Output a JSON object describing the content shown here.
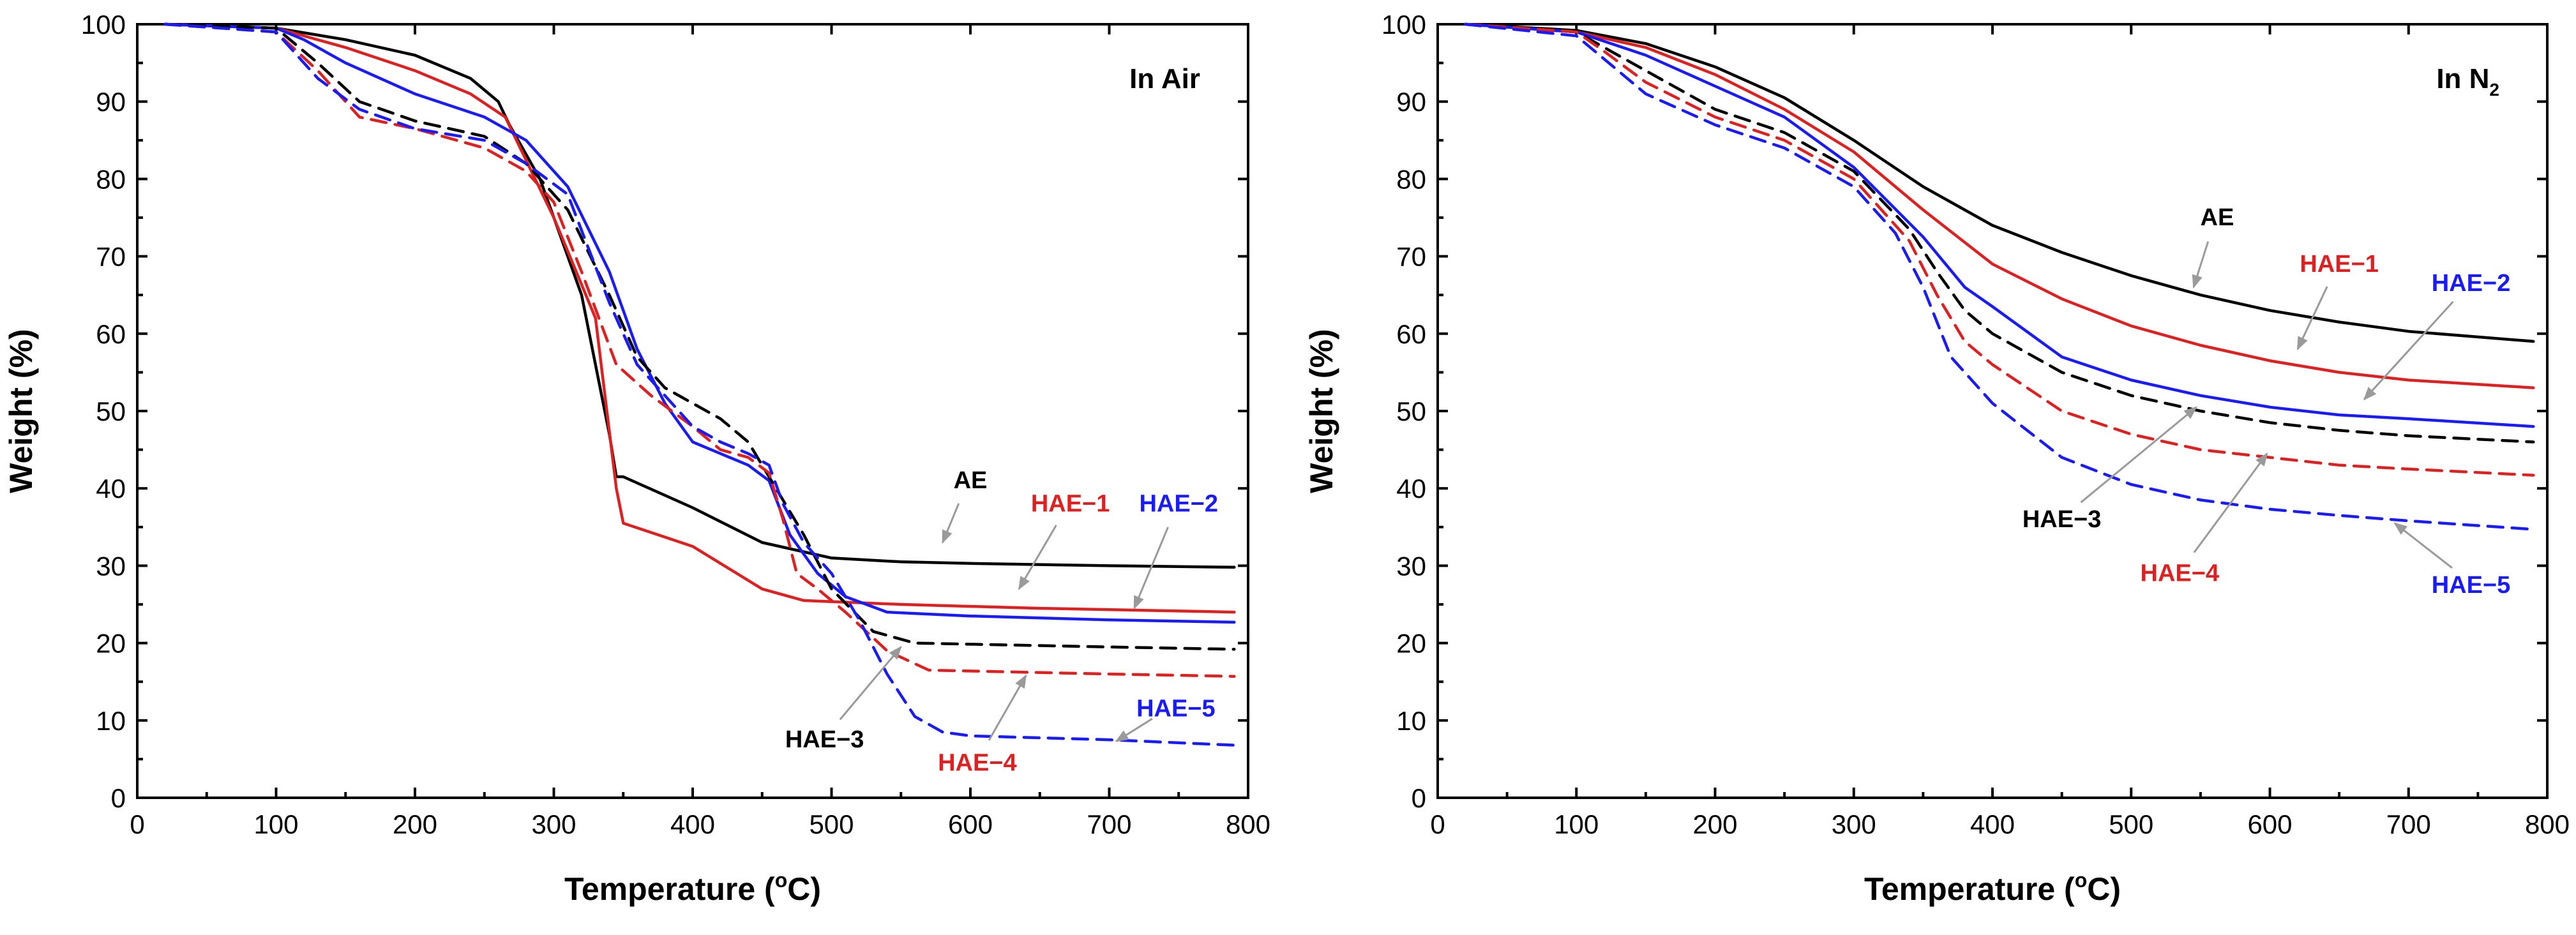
{
  "chart_data": [
    {
      "type": "line",
      "title": "In Air",
      "title_sub": "",
      "xlabel": "Temperature (",
      "xlabel_sup": "o",
      "xlabel_tail": "C)",
      "ylabel": "Weight (%)",
      "xlim": [
        0,
        800
      ],
      "ylim": [
        0,
        100
      ],
      "xticks": [
        0,
        100,
        200,
        300,
        400,
        500,
        600,
        700,
        800
      ],
      "yticks": [
        0,
        10,
        20,
        30,
        40,
        50,
        60,
        70,
        80,
        90,
        100
      ],
      "series": [
        {
          "name": "AE",
          "color": "#000000",
          "dash": false,
          "label_pos": [
            600,
            40
          ],
          "arrow_to": [
            580,
            33
          ],
          "x": [
            20,
            100,
            150,
            200,
            240,
            260,
            268,
            290,
            320,
            340,
            345,
            350,
            400,
            450,
            500,
            550,
            600,
            700,
            790
          ],
          "y": [
            100,
            99.5,
            98,
            96,
            93,
            90,
            87,
            80,
            65,
            47,
            41.5,
            41.5,
            37.5,
            33,
            31,
            30.5,
            30.3,
            30,
            29.8
          ]
        },
        {
          "name": "HAE−1",
          "color": "#e02020",
          "dash": false,
          "label_pos": [
            672,
            37
          ],
          "arrow_to": [
            635,
            27
          ],
          "x": [
            20,
            100,
            150,
            200,
            240,
            265,
            300,
            330,
            345,
            350,
            400,
            450,
            480,
            550,
            650,
            790
          ],
          "y": [
            100,
            99.5,
            97,
            94,
            91,
            88,
            75,
            62,
            40,
            35.5,
            32.5,
            27,
            25.5,
            25,
            24.5,
            24
          ]
        },
        {
          "name": "HAE−2",
          "color": "#1a1aff",
          "dash": false,
          "label_pos": [
            750,
            37
          ],
          "arrow_to": [
            718,
            24.5
          ],
          "x": [
            20,
            100,
            120,
            150,
            200,
            250,
            280,
            310,
            340,
            360,
            380,
            400,
            420,
            440,
            455,
            470,
            490,
            510,
            540,
            600,
            700,
            790
          ],
          "y": [
            100,
            99.5,
            98,
            95,
            91,
            88,
            85,
            79,
            68,
            58,
            51,
            46,
            44.5,
            43,
            41,
            34,
            29,
            26,
            24,
            23.5,
            23,
            22.7
          ]
        },
        {
          "name": "HAE−3",
          "color": "#000000",
          "dash": true,
          "label_pos": [
            495,
            6.5
          ],
          "arrow_to": [
            550,
            19.5
          ],
          "x": [
            20,
            100,
            130,
            160,
            200,
            250,
            280,
            310,
            340,
            360,
            380,
            400,
            420,
            440,
            460,
            480,
            500,
            530,
            560,
            700,
            790
          ],
          "y": [
            100,
            99.5,
            95,
            90,
            87.5,
            85.5,
            82,
            76,
            65,
            57,
            53,
            51,
            49,
            46,
            40,
            34,
            27,
            21.5,
            20,
            19.5,
            19.2
          ]
        },
        {
          "name": "HAE−4",
          "color": "#e02020",
          "dash": true,
          "label_pos": [
            605,
            3.5
          ],
          "arrow_to": [
            640,
            15.8
          ],
          "x": [
            20,
            100,
            130,
            160,
            200,
            250,
            280,
            300,
            320,
            345,
            370,
            400,
            420,
            440,
            455,
            465,
            475,
            490,
            510,
            540,
            570,
            700,
            790
          ],
          "y": [
            100,
            99,
            94,
            88,
            86.5,
            84,
            81,
            77,
            68,
            56,
            52,
            48,
            45,
            44,
            42,
            36,
            29,
            27,
            24,
            19,
            16.5,
            16,
            15.7
          ]
        },
        {
          "name": "HAE−5",
          "color": "#1a1aff",
          "dash": true,
          "label_pos": [
            748,
            10.5
          ],
          "arrow_to": [
            705,
            7.3
          ],
          "x": [
            20,
            100,
            130,
            160,
            200,
            250,
            280,
            310,
            340,
            360,
            380,
            400,
            420,
            440,
            455,
            465,
            480,
            500,
            520,
            540,
            560,
            580,
            600,
            700,
            790
          ],
          "y": [
            100,
            99,
            93,
            89,
            86.5,
            85,
            82,
            78,
            64,
            56,
            52,
            48,
            46,
            44.5,
            43,
            38,
            33,
            29,
            23,
            16,
            10.5,
            8.5,
            8,
            7.5,
            6.8
          ]
        }
      ]
    },
    {
      "type": "line",
      "title": "In N",
      "title_sub": "2",
      "xlabel": "Temperature (",
      "xlabel_sup": "o",
      "xlabel_tail": "C)",
      "ylabel": "Weight (%)",
      "xlim": [
        0,
        800
      ],
      "ylim": [
        0,
        100
      ],
      "xticks": [
        0,
        100,
        200,
        300,
        400,
        500,
        600,
        700,
        800
      ],
      "yticks": [
        0,
        10,
        20,
        30,
        40,
        50,
        60,
        70,
        80,
        90,
        100
      ],
      "series": [
        {
          "name": "AE",
          "color": "#000000",
          "dash": false,
          "label_pos": [
            562,
            74
          ],
          "arrow_to": [
            545,
            66
          ],
          "x": [
            20,
            100,
            150,
            200,
            250,
            300,
            350,
            400,
            450,
            500,
            550,
            600,
            650,
            700,
            790
          ],
          "y": [
            100,
            99.2,
            97.5,
            94.5,
            90.5,
            85,
            79,
            74,
            70.5,
            67.5,
            65,
            63,
            61.5,
            60.3,
            59
          ]
        },
        {
          "name": "HAE−1",
          "color": "#e02020",
          "dash": false,
          "label_pos": [
            650,
            68
          ],
          "arrow_to": [
            620,
            58
          ],
          "x": [
            20,
            100,
            150,
            200,
            250,
            300,
            350,
            400,
            450,
            500,
            550,
            600,
            650,
            700,
            790
          ],
          "y": [
            100,
            99,
            97,
            93.5,
            89,
            83.5,
            76,
            69,
            64.5,
            61,
            58.5,
            56.5,
            55,
            54,
            53
          ]
        },
        {
          "name": "HAE−2",
          "color": "#1a1aff",
          "dash": false,
          "label_pos": [
            745,
            65.5
          ],
          "arrow_to": [
            668,
            51.5
          ],
          "x": [
            20,
            100,
            150,
            200,
            250,
            300,
            350,
            380,
            400,
            450,
            500,
            550,
            600,
            650,
            700,
            790
          ],
          "y": [
            100,
            99,
            96,
            92,
            88,
            81.5,
            72.5,
            66,
            63.5,
            57,
            54,
            52,
            50.5,
            49.5,
            49,
            48
          ]
        },
        {
          "name": "HAE−3",
          "color": "#000000",
          "dash": true,
          "label_pos": [
            450,
            35
          ],
          "arrow_to": [
            547,
            50.5
          ],
          "x": [
            20,
            100,
            120,
            150,
            200,
            250,
            300,
            340,
            360,
            380,
            400,
            450,
            500,
            550,
            600,
            650,
            700,
            790
          ],
          "y": [
            100,
            99,
            97,
            94,
            89,
            86,
            81,
            73.5,
            68,
            63,
            60,
            55,
            52,
            50,
            48.5,
            47.5,
            46.8,
            46
          ]
        },
        {
          "name": "HAE−4",
          "color": "#e02020",
          "dash": true,
          "label_pos": [
            535,
            28
          ],
          "arrow_to": [
            598,
            44.5
          ],
          "x": [
            20,
            100,
            120,
            150,
            200,
            250,
            300,
            340,
            360,
            380,
            400,
            450,
            500,
            550,
            600,
            650,
            700,
            790
          ],
          "y": [
            100,
            99,
            96.5,
            92.5,
            88,
            85,
            80,
            72,
            65,
            59,
            56,
            50,
            47,
            45,
            44,
            43,
            42.5,
            41.7
          ]
        },
        {
          "name": "HAE−5",
          "color": "#1a1aff",
          "dash": true,
          "label_pos": [
            745,
            26.5
          ],
          "arrow_to": [
            690,
            35.5
          ],
          "x": [
            20,
            100,
            120,
            150,
            200,
            250,
            300,
            330,
            350,
            370,
            400,
            450,
            500,
            550,
            600,
            650,
            700,
            790
          ],
          "y": [
            100,
            98.5,
            95.5,
            91,
            87,
            84,
            79,
            73,
            66,
            57,
            51,
            44,
            40.5,
            38.5,
            37.3,
            36.5,
            35.8,
            34.7
          ]
        }
      ]
    }
  ]
}
